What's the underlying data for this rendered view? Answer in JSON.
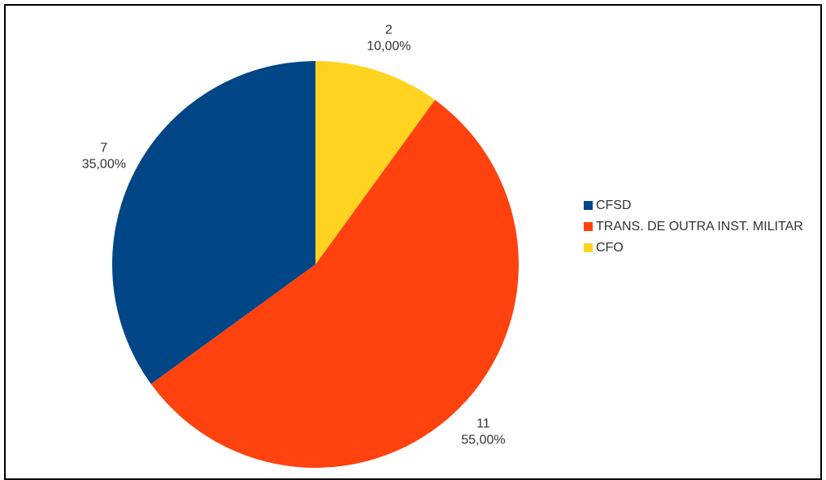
{
  "chart_data": {
    "type": "pie",
    "categories": [
      "CFSD",
      "TRANS. DE OUTRA INST. MILITAR",
      "CFO"
    ],
    "values": [
      7,
      11,
      2
    ],
    "percentages": [
      35,
      55,
      10
    ],
    "percentage_labels": [
      "35,00%",
      "55,00%",
      "10,00%"
    ],
    "colors": [
      "#004586",
      "#ff420e",
      "#ffd320"
    ],
    "legend": "right"
  }
}
